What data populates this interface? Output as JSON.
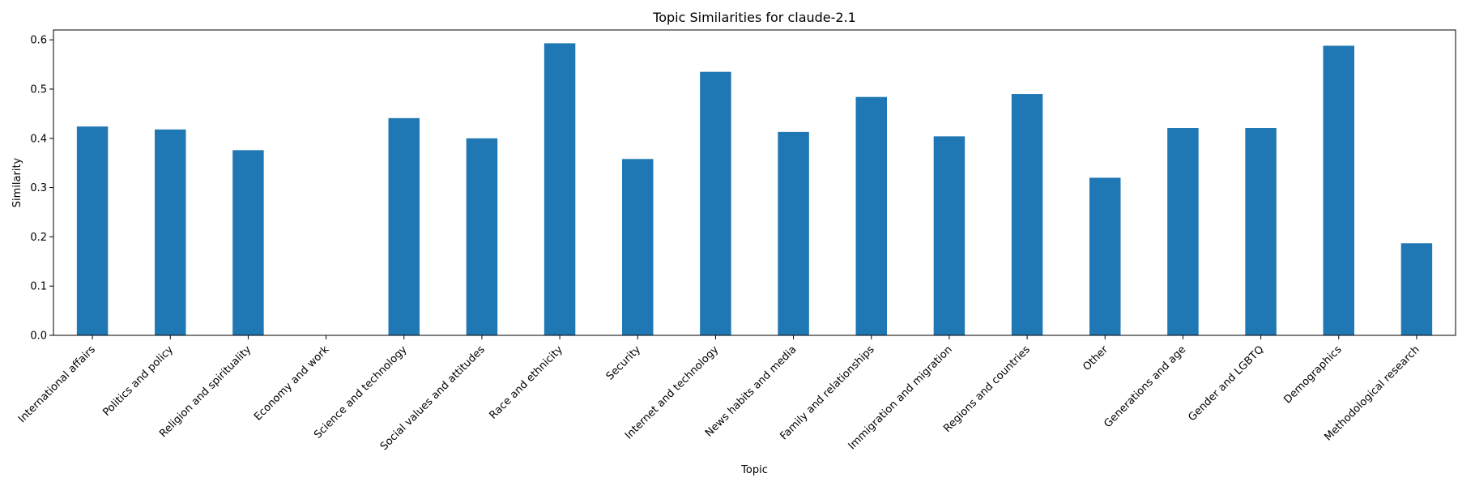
{
  "chart_data": {
    "type": "bar",
    "title": "Topic Similarities for claude-2.1",
    "xlabel": "Topic",
    "ylabel": "Similarity",
    "categories": [
      "International affairs",
      "Politics and policy",
      "Religion and spirituality",
      "Economy and work",
      "Science and technology",
      "Social values and attitudes",
      "Race and ethnicity",
      "Security",
      "Internet and technology",
      "News habits and media",
      "Family and relationships",
      "Immigration and migration",
      "Regions and countries",
      "Other",
      "Generations and age",
      "Gender and LGBTQ",
      "Demographics",
      "Methodological research"
    ],
    "values": [
      0.424,
      0.418,
      0.376,
      0.0,
      0.441,
      0.4,
      0.593,
      0.358,
      0.535,
      0.413,
      0.484,
      0.404,
      0.49,
      0.32,
      0.421,
      0.421,
      0.588,
      0.187
    ],
    "ylim": [
      0,
      0.62
    ],
    "yticks": [
      0.0,
      0.1,
      0.2,
      0.3,
      0.4,
      0.5,
      0.6
    ],
    "ytick_labels": [
      "0.0",
      "0.1",
      "0.2",
      "0.3",
      "0.4",
      "0.5",
      "0.6"
    ],
    "grid": false,
    "colors": {
      "bar": "#1f77b4",
      "axis": "#000000",
      "background": "#ffffff"
    }
  }
}
